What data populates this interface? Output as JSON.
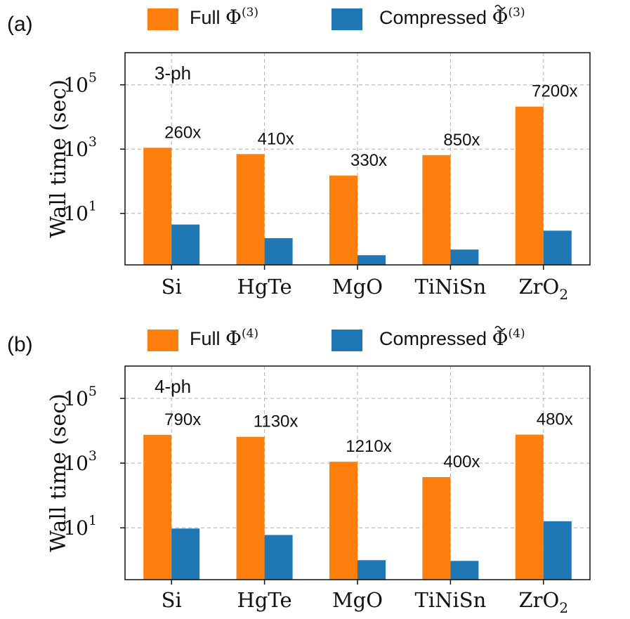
{
  "chart_data": [
    {
      "panel": "(a)",
      "type": "bar",
      "scale": "log",
      "annotation_label": "3-ph",
      "legend": {
        "full_prefix": "Full ",
        "compressed_prefix": "Compressed ",
        "symbol": "Φ",
        "order": "(3)",
        "placement": "top, above plot"
      },
      "ylabel": "Wall time (sec)",
      "ylim": [
        0.25,
        1000000
      ],
      "yticks": [
        {
          "base": "10",
          "exp": "1"
        },
        {
          "base": "10",
          "exp": "3"
        },
        {
          "base": "10",
          "exp": "5"
        }
      ],
      "ytick_values": [
        10,
        1000,
        100000
      ],
      "categories": [
        {
          "main": "Si",
          "sub": ""
        },
        {
          "main": "HgTe",
          "sub": ""
        },
        {
          "main": "MgO",
          "sub": ""
        },
        {
          "main": "TiNiSn",
          "sub": ""
        },
        {
          "main": "ZrO",
          "sub": "2"
        }
      ],
      "series": [
        {
          "name": "Full",
          "color": "#ff7f0e",
          "values": [
            1100,
            700,
            150,
            650,
            21000
          ]
        },
        {
          "name": "Compressed",
          "color": "#1f77b4",
          "values": [
            4.5,
            1.7,
            0.5,
            0.75,
            2.9
          ]
        }
      ],
      "speedups": [
        "260x",
        "410x",
        "330x",
        "850x",
        "7200x"
      ]
    },
    {
      "panel": "(b)",
      "type": "bar",
      "scale": "log",
      "annotation_label": "4-ph",
      "legend": {
        "full_prefix": "Full ",
        "compressed_prefix": "Compressed ",
        "symbol": "Φ",
        "order": "(4)",
        "placement": "top, above plot"
      },
      "ylabel": "Wall time (sec)",
      "ylim": [
        0.25,
        1000000
      ],
      "yticks": [
        {
          "base": "10",
          "exp": "1"
        },
        {
          "base": "10",
          "exp": "3"
        },
        {
          "base": "10",
          "exp": "5"
        }
      ],
      "ytick_values": [
        10,
        1000,
        100000
      ],
      "categories": [
        {
          "main": "Si",
          "sub": ""
        },
        {
          "main": "HgTe",
          "sub": ""
        },
        {
          "main": "MgO",
          "sub": ""
        },
        {
          "main": "TiNiSn",
          "sub": ""
        },
        {
          "main": "ZrO",
          "sub": "2"
        }
      ],
      "series": [
        {
          "name": "Full",
          "color": "#ff7f0e",
          "values": [
            7500,
            6500,
            1100,
            370,
            7600
          ]
        },
        {
          "name": "Compressed",
          "color": "#1f77b4",
          "values": [
            9.5,
            6.0,
            1.0,
            0.95,
            16
          ]
        }
      ],
      "speedups": [
        "790x",
        "1130x",
        "1210x",
        "400x",
        "480x"
      ]
    }
  ]
}
